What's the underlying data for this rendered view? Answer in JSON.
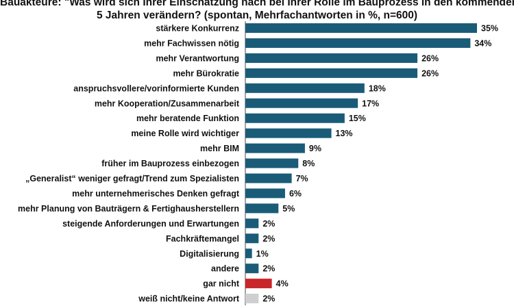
{
  "chart_data": {
    "type": "bar",
    "orientation": "horizontal",
    "title_lines": [
      "Bauakteure: \"Was wird sich Ihrer Einschätzung nach bei Ihrer Rolle im Bauprozess in den kommenden",
      "5 Jahren verändern? (spontan, Mehrfachantworten in %, n=600)"
    ],
    "categories": [
      "stärkere Konkurrenz",
      "mehr Fachwissen nötig",
      "mehr Verantwortung",
      "mehr Bürokratie",
      "anspruchsvollere/vorinformierte Kunden",
      "mehr Kooperation/Zusammenarbeit",
      "mehr beratende Funktion",
      "meine Rolle wird wichtiger",
      "mehr BIM",
      "früher im Bauprozess einbezogen",
      "„Generalist“ weniger gefragt/Trend zum Spezialisten",
      "mehr unternehmerisches Denken gefragt",
      "mehr Planung von Bauträgern & Fertighausherstellern",
      "steigende Anforderungen und Erwartungen",
      "Fachkräftemangel",
      "Digitalisierung",
      "andere",
      "gar nicht",
      "weiß nicht/keine Antwort"
    ],
    "values": [
      35,
      34,
      26,
      26,
      18,
      17,
      15,
      13,
      9,
      8,
      7,
      6,
      5,
      2,
      2,
      1,
      2,
      4,
      2
    ],
    "value_labels": [
      "35%",
      "34%",
      "26%",
      "26%",
      "18%",
      "17%",
      "15%",
      "13%",
      "9%",
      "8%",
      "7%",
      "6%",
      "5%",
      "2%",
      "2%",
      "1%",
      "2%",
      "4%",
      "2%"
    ],
    "colors": [
      "#1a5c78",
      "#1a5c78",
      "#1a5c78",
      "#1a5c78",
      "#1a5c78",
      "#1a5c78",
      "#1a5c78",
      "#1a5c78",
      "#1a5c78",
      "#1a5c78",
      "#1a5c78",
      "#1a5c78",
      "#1a5c78",
      "#1a5c78",
      "#1a5c78",
      "#1a5c78",
      "#1a5c78",
      "#c8262b",
      "#cfcfcf"
    ],
    "xlim": [
      0,
      35
    ],
    "grid": false,
    "legend": "none"
  }
}
